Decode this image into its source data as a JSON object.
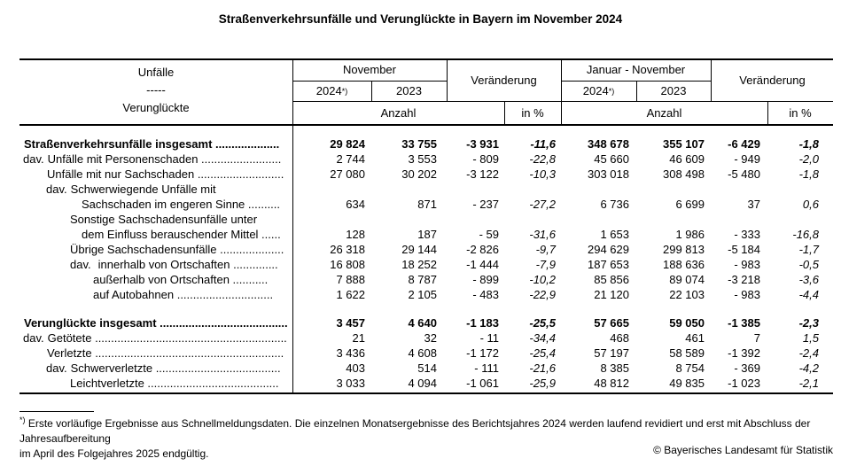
{
  "title": "Straßenverkehrsunfälle und Verunglückte in Bayern im November 2024",
  "colors": {
    "text": "#000000",
    "background": "#ffffff",
    "rule": "#000000"
  },
  "header": {
    "stub_line1": "Unfälle",
    "stub_line2": "-----",
    "stub_line3": "Verunglückte",
    "group_november": "November",
    "group_januar_november": "Januar - November",
    "veraenderung_1": "Veränderung",
    "veraenderung_2": "Veränderung",
    "year_2024_a": "2024",
    "year_2023_a": "2023",
    "year_2024_b": "2024",
    "year_2023_b": "2023",
    "footnote_marker": "*)",
    "anzahl_1": "Anzahl",
    "in_percent_1": "in %",
    "anzahl_2": "Anzahl",
    "in_percent_2": "in %"
  },
  "table": {
    "rows": [
      {
        "prefix": "",
        "label": "Straßenverkehrsunfälle insgesamt ....................",
        "indent": 0,
        "bold": true,
        "gap": false,
        "values": [
          "29 824",
          "33 755",
          "-3 931",
          "-11,6",
          "348 678",
          "355 107",
          "-6 429",
          "-1,8"
        ]
      },
      {
        "prefix": "dav.",
        "label": "Unfälle mit Personenschaden .........................",
        "indent": 1,
        "bold": false,
        "gap": false,
        "values": [
          "2 744",
          "3 553",
          "- 809",
          "-22,8",
          "45 660",
          "46 609",
          "- 949",
          "-2,0"
        ]
      },
      {
        "prefix": "",
        "label": "Unfälle mit nur Sachschaden ...........................",
        "indent": 2,
        "bold": false,
        "gap": false,
        "values": [
          "27 080",
          "30 202",
          "-3 122",
          "-10,3",
          "303 018",
          "308 498",
          "-5 480",
          "-1,8"
        ]
      },
      {
        "prefix": "dav.",
        "label": "Schwerwiegende Unfälle mit",
        "indent": 3,
        "bold": false,
        "gap": false,
        "values": []
      },
      {
        "prefix": "",
        "label": "Sachschaden im engeren Sinne ..........",
        "indent": 7,
        "bold": false,
        "gap": false,
        "values": [
          "634",
          "871",
          "- 237",
          "-27,2",
          "6 736",
          "6 699",
          "37",
          "0,6"
        ]
      },
      {
        "prefix": "",
        "label": "Sonstige Sachschadensunfälle unter",
        "indent": 4,
        "bold": false,
        "gap": false,
        "values": []
      },
      {
        "prefix": "",
        "label": "dem Einfluss berauschender Mittel ......",
        "indent": 7,
        "bold": false,
        "gap": false,
        "values": [
          "128",
          "187",
          "- 59",
          "-31,6",
          "1 653",
          "1 986",
          "- 333",
          "-16,8"
        ]
      },
      {
        "prefix": "",
        "label": "Übrige Sachschadensunfälle ....................",
        "indent": 4,
        "bold": false,
        "gap": false,
        "values": [
          "26 318",
          "29 144",
          "-2 826",
          "-9,7",
          "294 629",
          "299 813",
          "-5 184",
          "-1,7"
        ]
      },
      {
        "prefix": "dav.",
        "label": "innerhalb von Ortschaften ..............",
        "indent": 5,
        "bold": false,
        "gap": false,
        "values": [
          "16 808",
          "18 252",
          "-1 444",
          "-7,9",
          "187 653",
          "188 636",
          "- 983",
          "-0,5"
        ]
      },
      {
        "prefix": "",
        "label": "außerhalb von Ortschaften ...........",
        "indent": 6,
        "bold": false,
        "gap": false,
        "values": [
          "7 888",
          "8 787",
          "- 899",
          "-10,2",
          "85 856",
          "89 074",
          "-3 218",
          "-3,6"
        ]
      },
      {
        "prefix": "",
        "label": "auf Autobahnen ..............................",
        "indent": 6,
        "bold": false,
        "gap": false,
        "values": [
          "1 622",
          "2 105",
          "- 483",
          "-22,9",
          "21 120",
          "22 103",
          "- 983",
          "-4,4"
        ]
      },
      {
        "prefix": "",
        "label": "Verunglückte insgesamt ........................................",
        "indent": 0,
        "bold": true,
        "gap": true,
        "values": [
          "3 457",
          "4 640",
          "-1 183",
          "-25,5",
          "57 665",
          "59 050",
          "-1 385",
          "-2,3"
        ]
      },
      {
        "prefix": "dav.",
        "label": "Getötete ............................................................",
        "indent": 1,
        "bold": false,
        "gap": false,
        "values": [
          "21",
          "32",
          "- 11",
          "-34,4",
          "468",
          "461",
          "7",
          "1,5"
        ]
      },
      {
        "prefix": "",
        "label": "Verletzte ...........................................................",
        "indent": 2,
        "bold": false,
        "gap": false,
        "values": [
          "3 436",
          "4 608",
          "-1 172",
          "-25,4",
          "57 197",
          "58 589",
          "-1 392",
          "-2,4"
        ]
      },
      {
        "prefix": "dav.",
        "label": "Schwerverletzte .......................................",
        "indent": 3,
        "bold": false,
        "gap": false,
        "values": [
          "403",
          "514",
          "- 111",
          "-21,6",
          "8 385",
          "8 754",
          "- 369",
          "-4,2"
        ]
      },
      {
        "prefix": "",
        "label": "Leichtverletzte .........................................",
        "indent": 4,
        "bold": false,
        "gap": false,
        "values": [
          "3 033",
          "4 094",
          "-1 061",
          "-25,9",
          "48 812",
          "49 835",
          "-1 023",
          "-2,1"
        ]
      }
    ]
  },
  "footnote": {
    "marker": "*)",
    "line1": "Erste vorläufige Ergebnisse aus Schnellmeldungsdaten. Die einzelnen Monatsergebnisse des Berichtsjahres 2024 werden laufend revidiert und erst mit Abschluss der Jahresaufbereitung",
    "line2": "im April des Folgejahres 2025 endgültig."
  },
  "copyright": "© Bayerisches Landesamt für Statistik"
}
